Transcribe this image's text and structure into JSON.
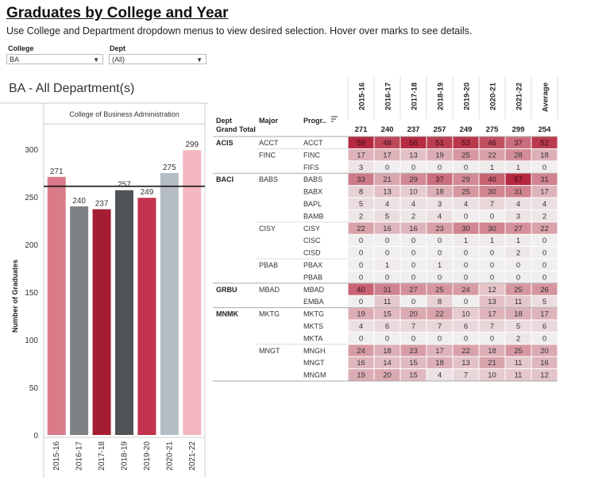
{
  "header": {
    "title": "Graduates by College and Year",
    "subtitle": "Use College and Department dropdown menus to view desired selection. Hover over marks to see details."
  },
  "filters": {
    "college_label": "College",
    "college_value": "BA",
    "dept_label": "Dept",
    "dept_value": "(All)",
    "dropdown_icon": "triangle-down-icon"
  },
  "section_title": "BA - All Department(s)",
  "chart_data": [
    {
      "type": "bar",
      "title": "College of Business Administration",
      "ylabel": "Number of Graduates",
      "categories": [
        "2015-16",
        "2016-17",
        "2017-18",
        "2018-19",
        "2019-20",
        "2020-21",
        "2021-22"
      ],
      "values": [
        271,
        240,
        237,
        257,
        249,
        275,
        299
      ],
      "ylim": [
        0,
        320
      ],
      "yticks": [
        0,
        50,
        100,
        150,
        200,
        250,
        300
      ],
      "reference_line": 261.1,
      "colors": [
        "#d97b89",
        "#7d8287",
        "#a51d33",
        "#505458",
        "#c2334e",
        "#b6bcc6",
        "#f4b6c0"
      ],
      "grid": false
    },
    {
      "type": "heatmap",
      "col_headers": {
        "dept": "Dept",
        "major": "Major",
        "program": "Progr.."
      },
      "sort_icon": "sort-icon",
      "years": [
        "2015-16",
        "2016-17",
        "2017-18",
        "2018-19",
        "2019-20",
        "2020-21",
        "2021-22",
        "Average"
      ],
      "grand_total_label": "Grand Total",
      "grand_total": [
        "271",
        "240",
        "237",
        "257",
        "249",
        "275",
        "299",
        "254"
      ],
      "colors": {
        "low": "#f0eeee",
        "high": "#b5283f"
      },
      "groups": [
        {
          "dept": "ACIS",
          "majors": [
            {
              "major": "ACCT",
              "rows": [
                {
                  "program": "ACCT",
                  "values": [
                    "59",
                    "48",
                    "56",
                    "51",
                    "53",
                    "46",
                    "37",
                    "52"
                  ]
                }
              ]
            },
            {
              "major": "FINC",
              "rows": [
                {
                  "program": "FINC",
                  "values": [
                    "17",
                    "17",
                    "13",
                    "19",
                    "25",
                    "22",
                    "28",
                    "18"
                  ]
                },
                {
                  "program": "FIFS",
                  "values": [
                    "3",
                    "0",
                    "0",
                    "0",
                    "0",
                    "1",
                    "1",
                    "0"
                  ]
                }
              ]
            }
          ]
        },
        {
          "dept": "BACI",
          "majors": [
            {
              "major": "BABS",
              "rows": [
                {
                  "program": "BABS",
                  "values": [
                    "33",
                    "21",
                    "29",
                    "37",
                    "29",
                    "40",
                    "57",
                    "31"
                  ]
                },
                {
                  "program": "BABX",
                  "values": [
                    "8",
                    "13",
                    "10",
                    "18",
                    "25",
                    "30",
                    "31",
                    "17"
                  ]
                },
                {
                  "program": "BAPL",
                  "values": [
                    "5",
                    "4",
                    "4",
                    "3",
                    "4",
                    "7",
                    "4",
                    "4"
                  ]
                },
                {
                  "program": "BAMB",
                  "values": [
                    "2",
                    "5",
                    "2",
                    "4",
                    "0",
                    "0",
                    "3",
                    "2"
                  ]
                }
              ]
            },
            {
              "major": "CISY",
              "rows": [
                {
                  "program": "CISY",
                  "values": [
                    "22",
                    "16",
                    "16",
                    "23",
                    "30",
                    "30",
                    "27",
                    "22"
                  ]
                },
                {
                  "program": "CISC",
                  "values": [
                    "0",
                    "0",
                    "0",
                    "0",
                    "1",
                    "1",
                    "1",
                    "0"
                  ]
                },
                {
                  "program": "CISD",
                  "values": [
                    "0",
                    "0",
                    "0",
                    "0",
                    "0",
                    "0",
                    "2",
                    "0"
                  ]
                }
              ]
            },
            {
              "major": "PBAB",
              "rows": [
                {
                  "program": "PBAX",
                  "values": [
                    "0",
                    "1",
                    "0",
                    "1",
                    "0",
                    "0",
                    "0",
                    "0"
                  ]
                },
                {
                  "program": "PBAB",
                  "values": [
                    "0",
                    "0",
                    "0",
                    "0",
                    "0",
                    "0",
                    "0",
                    "0"
                  ]
                }
              ]
            }
          ]
        },
        {
          "dept": "GRBU",
          "majors": [
            {
              "major": "MBAD",
              "rows": [
                {
                  "program": "MBAD",
                  "values": [
                    "40",
                    "31",
                    "27",
                    "25",
                    "24",
                    "12",
                    "25",
                    "26"
                  ]
                },
                {
                  "program": "EMBA",
                  "values": [
                    "0",
                    "11",
                    "0",
                    "8",
                    "0",
                    "13",
                    "11",
                    "5"
                  ]
                }
              ]
            }
          ]
        },
        {
          "dept": "MNMK",
          "majors": [
            {
              "major": "MKTG",
              "rows": [
                {
                  "program": "MKTG",
                  "values": [
                    "19",
                    "15",
                    "20",
                    "22",
                    "10",
                    "17",
                    "18",
                    "17"
                  ]
                },
                {
                  "program": "MKTS",
                  "values": [
                    "4",
                    "6",
                    "7",
                    "7",
                    "6",
                    "7",
                    "5",
                    "6"
                  ]
                },
                {
                  "program": "MKTA",
                  "values": [
                    "0",
                    "0",
                    "0",
                    "0",
                    "0",
                    "0",
                    "2",
                    "0"
                  ]
                }
              ]
            },
            {
              "major": "MNGT",
              "rows": [
                {
                  "program": "MNGH",
                  "values": [
                    "24",
                    "18",
                    "23",
                    "17",
                    "22",
                    "18",
                    "25",
                    "20"
                  ]
                },
                {
                  "program": "MNGT",
                  "values": [
                    "16",
                    "14",
                    "15",
                    "18",
                    "13",
                    "21",
                    "11",
                    "16"
                  ]
                },
                {
                  "program": "MNGM",
                  "values": [
                    "19",
                    "20",
                    "15",
                    "4",
                    "7",
                    "10",
                    "11",
                    "12"
                  ]
                }
              ]
            }
          ]
        }
      ]
    }
  ]
}
